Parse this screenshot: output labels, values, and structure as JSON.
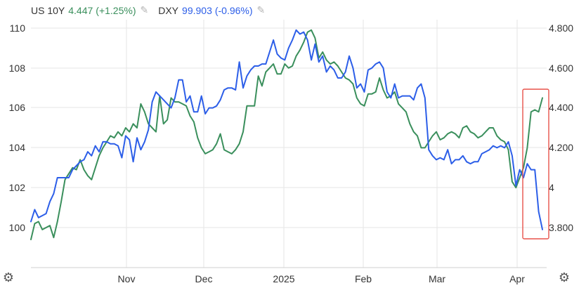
{
  "legend": {
    "us10y": {
      "name": "US 10Y",
      "value": "4.447",
      "change": "(+1.25%)",
      "edit_icon": "pencil-icon"
    },
    "dxy": {
      "name": "DXY",
      "value": "99.903",
      "change": "(-0.96%)",
      "edit_icon": "pencil-icon"
    }
  },
  "settings_icon": "gear-icon",
  "colors": {
    "us10y": "#3a8f5c",
    "dxy": "#2c5ee8",
    "highlight": "#e8524a",
    "grid": "#e6e6e6"
  },
  "chart_data": {
    "type": "line",
    "x_tick_labels": [
      "Nov",
      "Dec",
      "2025",
      "Feb",
      "Mar",
      "Apr"
    ],
    "left_axis": {
      "ticks": [
        "100",
        "102",
        "104",
        "106",
        "108",
        "110"
      ],
      "ylim": [
        99,
        111.5
      ]
    },
    "right_axis": {
      "ticks": [
        "3.800",
        "4",
        "4.200",
        "4.400",
        "4.600",
        "4.800"
      ],
      "ylim": [
        3.68,
        4.87
      ]
    },
    "grid": true,
    "series": [
      {
        "name": "DXY",
        "axis": "left",
        "color": "#2c5ee8",
        "values": [
          100.3,
          100.9,
          100.5,
          100.6,
          100.7,
          101.3,
          101.7,
          102.5,
          102.5,
          102.5,
          102.5,
          102.9,
          103.1,
          103.3,
          103.4,
          103.8,
          103.6,
          104.1,
          103.8,
          104.3,
          104.3,
          104.2,
          104.2,
          104.1,
          103.5,
          104.6,
          104.4,
          103.3,
          104.5,
          103.9,
          104.3,
          104.9,
          106.3,
          106.8,
          106.6,
          106.4,
          106.2,
          106.0,
          106.5,
          107.4,
          107.4,
          106.3,
          106.6,
          105.8,
          105.8,
          106.6,
          105.7,
          106.0,
          106.0,
          106.1,
          106.4,
          106.9,
          107.0,
          107.0,
          106.9,
          108.3,
          107.0,
          107.6,
          107.9,
          108.1,
          108.1,
          108.2,
          108.2,
          108.8,
          109.4,
          108.7,
          108.5,
          108.4,
          109.0,
          109.4,
          109.9,
          109.7,
          109.8,
          109.4,
          108.4,
          109.2,
          108.3,
          108.6,
          107.8,
          108.1,
          107.9,
          107.5,
          107.5,
          107.8,
          108.6,
          108.0,
          107.0,
          107.2,
          106.8,
          107.9,
          108.0,
          108.2,
          108.3,
          108.0,
          106.8,
          106.5,
          107.2,
          106.5,
          106.6,
          106.6,
          106.6,
          106.4,
          107.0,
          107.2,
          106.5,
          103.9,
          103.6,
          103.4,
          103.5,
          103.4,
          103.9,
          103.2,
          103.4,
          103.4,
          103.6,
          103.3,
          103.2,
          103.3,
          103.3,
          103.7,
          103.8,
          103.9,
          104.1,
          104.0,
          104.1,
          104.0,
          104.3,
          103.6,
          102.1,
          102.9,
          102.5,
          103.2,
          102.9,
          102.9,
          100.8,
          99.9
        ]
      },
      {
        "name": "US 10Y",
        "axis": "right",
        "color": "#3a8f5c",
        "values": [
          3.74,
          3.82,
          3.83,
          3.79,
          3.8,
          3.81,
          3.75,
          3.83,
          3.93,
          4.04,
          4.07,
          4.1,
          4.09,
          4.14,
          4.09,
          4.06,
          4.04,
          4.1,
          4.16,
          4.2,
          4.23,
          4.26,
          4.25,
          4.28,
          4.26,
          4.3,
          4.28,
          4.32,
          4.3,
          4.42,
          4.38,
          4.32,
          4.3,
          4.28,
          4.46,
          4.32,
          4.34,
          4.45,
          4.43,
          4.43,
          4.42,
          4.41,
          4.36,
          4.33,
          4.25,
          4.2,
          4.17,
          4.18,
          4.19,
          4.22,
          4.27,
          4.19,
          4.18,
          4.17,
          4.19,
          4.22,
          4.28,
          4.41,
          4.41,
          4.41,
          4.56,
          4.51,
          4.58,
          4.6,
          4.62,
          4.57,
          4.57,
          4.62,
          4.6,
          4.61,
          4.66,
          4.69,
          4.73,
          4.78,
          4.79,
          4.75,
          4.65,
          4.68,
          4.64,
          4.62,
          4.63,
          4.61,
          4.58,
          4.55,
          4.54,
          4.52,
          4.45,
          4.42,
          4.41,
          4.47,
          4.47,
          4.48,
          4.55,
          4.49,
          4.45,
          4.46,
          4.48,
          4.42,
          4.4,
          4.38,
          4.32,
          4.28,
          4.26,
          4.2,
          4.2,
          4.23,
          4.26,
          4.28,
          4.24,
          4.25,
          4.27,
          4.28,
          4.27,
          4.25,
          4.3,
          4.31,
          4.28,
          4.27,
          4.25,
          4.26,
          4.28,
          4.3,
          4.3,
          4.26,
          4.24,
          4.23,
          4.19,
          4.03,
          4.0,
          4.05,
          4.1,
          4.2,
          4.38,
          4.39,
          4.38,
          4.45
        ]
      }
    ]
  }
}
